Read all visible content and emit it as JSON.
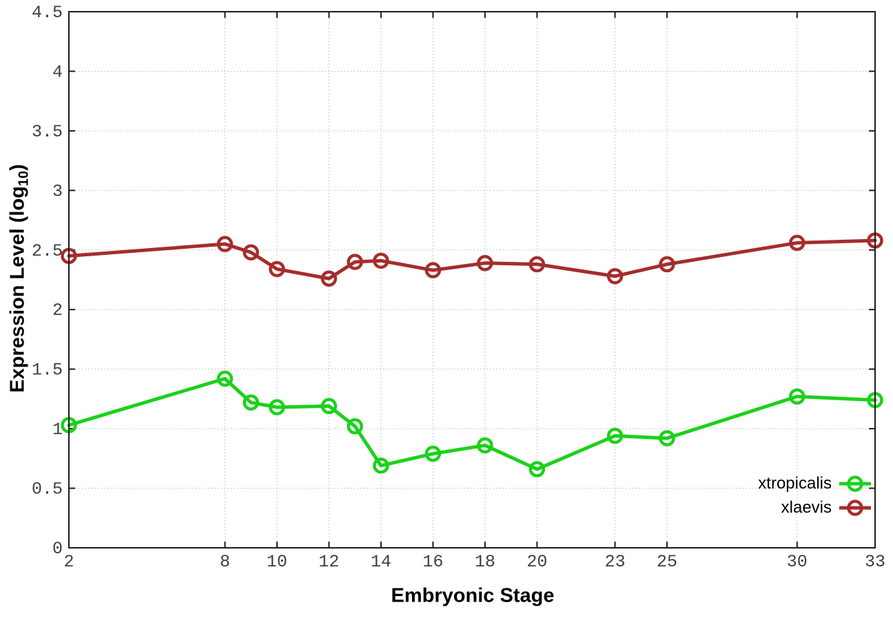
{
  "chart_data": {
    "type": "line",
    "title": "",
    "xlabel": "Embryonic Stage",
    "ylabel": "Expression Level (log10)",
    "ylabel_parts": {
      "prefix": "Expression Level (log",
      "subscript": "10",
      "suffix": ")"
    },
    "x": [
      2,
      8,
      9,
      10,
      12,
      13,
      14,
      16,
      18,
      20,
      23,
      25,
      30,
      33
    ],
    "series": [
      {
        "name": "xtropicalis",
        "color": "#1bd11b",
        "values": [
          1.03,
          1.42,
          1.22,
          1.18,
          1.19,
          1.02,
          0.69,
          0.79,
          0.86,
          0.66,
          0.94,
          0.92,
          1.27,
          1.24
        ]
      },
      {
        "name": "xlaevis",
        "color": "#a52d2d",
        "values": [
          2.45,
          2.55,
          2.48,
          2.34,
          2.26,
          2.4,
          2.41,
          2.33,
          2.39,
          2.38,
          2.28,
          2.38,
          2.56,
          2.58
        ]
      }
    ],
    "xlim": [
      2,
      33
    ],
    "ylim": [
      0,
      4.5
    ],
    "xticks": [
      2,
      8,
      10,
      12,
      14,
      16,
      18,
      20,
      23,
      25,
      30,
      33
    ],
    "yticks": [
      0,
      0.5,
      1,
      1.5,
      2,
      2.5,
      3,
      3.5,
      4,
      4.5
    ],
    "grid": true,
    "legend_position": "inside-bottom-right",
    "marker": "open-circle",
    "colors": {
      "background": "#ffffff",
      "plot_border": "#1c1c1c",
      "grid": "#b8b8b8",
      "tick_label": "#404040",
      "axis_title": "#000000"
    }
  }
}
